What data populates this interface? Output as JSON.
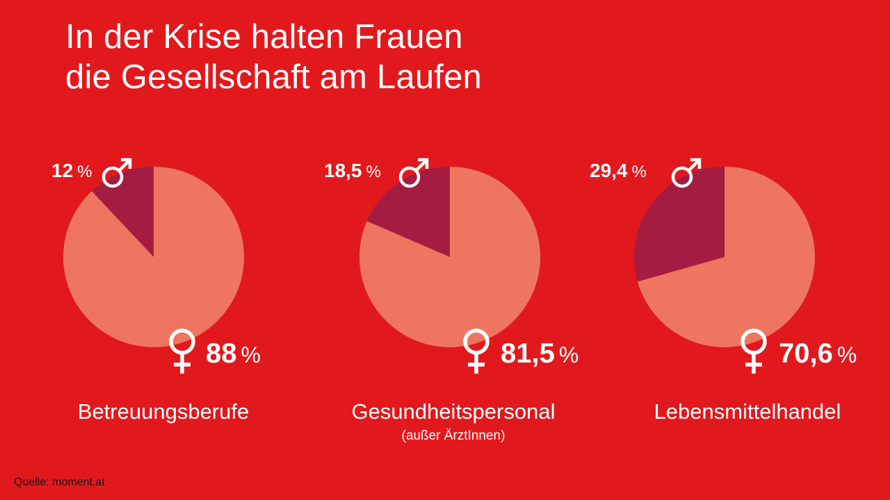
{
  "title": {
    "line1": "In der Krise halten Frauen",
    "line2": "die Gesellschaft am Laufen"
  },
  "chart_data": [
    {
      "type": "pie",
      "title": "Betreuungsberufe",
      "subtitle": "",
      "labels": [
        "Männer",
        "Frauen"
      ],
      "values": [
        12,
        88
      ],
      "value_labels": [
        "12",
        "88"
      ],
      "unit": "%"
    },
    {
      "type": "pie",
      "title": "Gesundheitspersonal",
      "subtitle": "(außer ÄrztInnen)",
      "labels": [
        "Männer",
        "Frauen"
      ],
      "values": [
        18.5,
        81.5
      ],
      "value_labels": [
        "18,5",
        "81,5"
      ],
      "unit": "%"
    },
    {
      "type": "pie",
      "title": "Lebensmittelhandel",
      "subtitle": "",
      "labels": [
        "Männer",
        "Frauen"
      ],
      "values": [
        29.4,
        70.6
      ],
      "value_labels": [
        "29,4",
        "70,6"
      ],
      "unit": "%"
    }
  ],
  "icons": {
    "male": "male-symbol-icon",
    "female": "female-symbol-icon"
  },
  "colors": {
    "background": "#e1191d",
    "female_slice": "#ee7660",
    "male_slice": "#a51c43",
    "text": "#ffffff",
    "source_text": "#2a0a0c"
  },
  "source": "Quelle: moment.at"
}
